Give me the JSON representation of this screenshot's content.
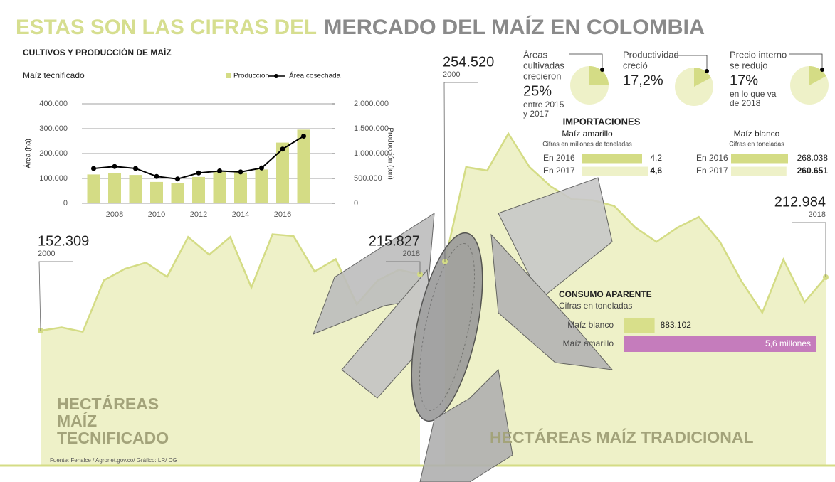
{
  "title_part1": "ESTAS SON LAS CIFRAS DEL",
  "title_part2": "MERCADO DEL MAÍZ EN COLOMBIA",
  "section_title": "CULTIVOS Y PRODUCCIÓN DE MAÍZ",
  "imports_title": "IMPORTACIONES",
  "source": "Fuente: Fenalce / Agronet.gov.co/ Gráfico: LR/ CG",
  "chart_data": [
    {
      "type": "combo",
      "subtitle": "Maíz tecnificado",
      "y_label": "Área (ha)",
      "y2_label": "Producción (ton)",
      "categories": [
        null,
        "2008",
        null,
        "2010",
        null,
        "2012",
        null,
        "2014",
        null,
        "2016",
        null
      ],
      "series": [
        {
          "name": "Producción",
          "type": "bar",
          "axis": "y2",
          "color": "#d4dc85",
          "values": [
            580000,
            600000,
            570000,
            430000,
            400000,
            530000,
            630000,
            620000,
            680000,
            1220000,
            1480000
          ]
        },
        {
          "name": "Área cosechada",
          "type": "line",
          "axis": "y",
          "color": "#000000",
          "values": [
            140000,
            148000,
            140000,
            108000,
            98000,
            122000,
            130000,
            126000,
            142000,
            218000,
            270000
          ]
        }
      ],
      "ylim": [
        0,
        400000
      ],
      "yticks": [
        0,
        {
          "value": 100000,
          "label": "100.000"
        },
        {
          "value": 200000,
          "label": "200.000"
        },
        {
          "value": 300000,
          "label": "300.000"
        },
        {
          "value": 400000,
          "label": "400.000"
        }
      ],
      "y2lim": [
        0,
        2000000
      ],
      "y2ticks": [
        0,
        {
          "value": 500000,
          "label": "500.000"
        },
        {
          "value": 1000000,
          "label": "1.000.000"
        },
        {
          "value": 1500000,
          "label": "1.500.000"
        },
        {
          "value": 2000000,
          "label": "2.000.000"
        }
      ],
      "grid": true
    },
    {
      "type": "area",
      "label_lines": [
        "HECTÁREAS",
        "MAÍZ",
        "TECNIFICADO"
      ],
      "color": "#d4dc85",
      "categories": [
        "2000",
        null,
        null,
        null,
        null,
        null,
        null,
        null,
        null,
        null,
        null,
        null,
        null,
        null,
        null,
        null,
        null,
        null,
        "2018"
      ],
      "values": [
        152309,
        156000,
        151000,
        209000,
        222000,
        229000,
        213000,
        258000,
        238000,
        258000,
        201000,
        261000,
        259000,
        219000,
        233000,
        182000,
        209000,
        221000,
        215827
      ],
      "value_labels": [
        "152.309",
        null,
        null,
        null,
        null,
        null,
        null,
        null,
        null,
        null,
        null,
        null,
        null,
        null,
        null,
        null,
        null,
        null,
        "215.827"
      ]
    },
    {
      "type": "area",
      "label_lines": [
        "HECTÁREAS MAÍZ TRADICIONAL"
      ],
      "color": "#d4dc85",
      "categories": [
        "2000",
        null,
        null,
        null,
        null,
        null,
        null,
        null,
        null,
        null,
        null,
        null,
        null,
        null,
        null,
        null,
        null,
        null,
        "2018"
      ],
      "values": [
        254520,
        505000,
        496000,
        594000,
        505000,
        454000,
        420000,
        417000,
        402000,
        345000,
        307000,
        345000,
        373000,
        307000,
        204000,
        119000,
        260000,
        147000,
        212984
      ],
      "value_labels": [
        "254.520",
        null,
        null,
        null,
        null,
        null,
        null,
        null,
        null,
        null,
        null,
        null,
        null,
        null,
        null,
        null,
        null,
        null,
        "212.984"
      ]
    },
    {
      "type": "pie",
      "label_lines": [
        "Áreas",
        "cultivadas",
        "crecieron"
      ],
      "values": [
        25
      ],
      "value_labels": [
        "25%"
      ],
      "note_lines": [
        "entre 2015",
        "y 2017"
      ],
      "color": "#d4dc85"
    },
    {
      "type": "pie",
      "label_lines": [
        "Productividad",
        "creció"
      ],
      "values": [
        17.2
      ],
      "value_labels": [
        "17,2%"
      ],
      "color": "#d4dc85"
    },
    {
      "type": "pie",
      "label_lines": [
        "Precio interno",
        "se redujo"
      ],
      "values": [
        17
      ],
      "value_labels": [
        "17%"
      ],
      "note_lines": [
        "en lo que va",
        "de 2018"
      ],
      "color": "#d4dc85"
    },
    {
      "type": "hbar",
      "title": "Maíz amarillo",
      "subtitle": "Cifras en millones de toneladas",
      "categories": [
        "En 2016",
        "En 2017"
      ],
      "values": [
        4.2,
        4.6
      ],
      "value_labels": [
        "4,2",
        "4,6"
      ],
      "colors": [
        "#d4dc85",
        "#eef1c8"
      ]
    },
    {
      "type": "hbar",
      "title": "Maíz blanco",
      "subtitle": "Cifras en toneladas",
      "categories": [
        "En 2016",
        "En 2017"
      ],
      "values": [
        268038,
        260651
      ],
      "value_labels": [
        "268.038",
        "260.651"
      ],
      "colors": [
        "#d4dc85",
        "#eef1c8"
      ]
    },
    {
      "type": "hbar",
      "title": "CONSUMO APARENTE",
      "subtitle": "Cifras en toneladas",
      "categories": [
        "Maíz blanco",
        "Maíz amarillo"
      ],
      "values": [
        883102,
        5600000
      ],
      "value_labels": [
        "883.102",
        "5,6 millones"
      ],
      "colors": [
        "#d8df8a",
        "#c57cbc"
      ]
    }
  ]
}
